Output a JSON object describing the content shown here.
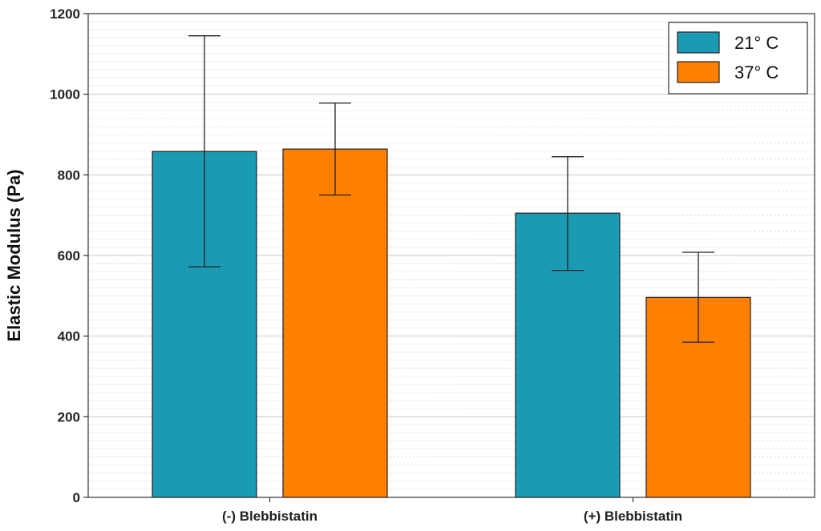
{
  "chart_data": {
    "type": "bar",
    "title": "",
    "xlabel": "",
    "ylabel": "Elastic  Modulus (Pa)",
    "categories": [
      "(-) Blebbistatin",
      "(+) Blebbistatin"
    ],
    "series": [
      {
        "name": "21° C",
        "color": "#1a9bb3",
        "values": [
          858,
          705
        ],
        "error_low": [
          572,
          563
        ],
        "error_high": [
          1145,
          845
        ]
      },
      {
        "name": "37° C",
        "color": "#ff7f00",
        "values": [
          864,
          496
        ],
        "error_low": [
          750,
          385
        ],
        "error_high": [
          978,
          608
        ]
      }
    ],
    "ylim": [
      0,
      1200
    ],
    "yticks": [
      0,
      200,
      400,
      600,
      800,
      1000,
      1200
    ],
    "yticklabels": [
      "0",
      "200",
      "400",
      "600",
      "800",
      "1000",
      "1200"
    ],
    "grid": true,
    "legend_position": "top-right"
  }
}
